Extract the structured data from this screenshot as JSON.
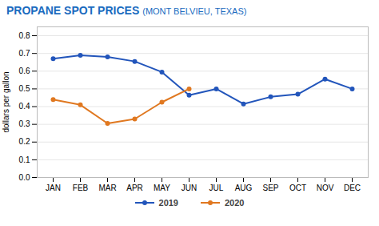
{
  "chart_data": {
    "type": "line",
    "title": "PROPANE SPOT PRICES",
    "subtitle": "(MONT BELVIEU, TEXAS)",
    "y_label": "dollars per gallon",
    "categories": [
      "JAN",
      "FEB",
      "MAR",
      "APR",
      "MAY",
      "JUN",
      "JUL",
      "AUG",
      "SEP",
      "OCT",
      "NOV",
      "DEC"
    ],
    "series": [
      {
        "name": "2019",
        "color": "#2255bb",
        "values": [
          0.67,
          0.69,
          0.68,
          0.655,
          0.595,
          0.465,
          0.5,
          0.415,
          0.455,
          0.47,
          0.555,
          0.5
        ]
      },
      {
        "name": "2020",
        "color": "#e07820",
        "values": [
          0.44,
          0.41,
          0.305,
          0.33,
          0.425,
          0.5,
          null,
          null,
          null,
          null,
          null,
          null
        ]
      }
    ],
    "ylim": [
      0.0,
      0.85
    ],
    "yticks": [
      {
        "value": 0,
        "label": "0.0"
      },
      0.1,
      0.2,
      0.3,
      0.4,
      0.5,
      0.6,
      0.7,
      0.8
    ],
    "grid": true,
    "legend": "bottom",
    "marker": "circle"
  }
}
